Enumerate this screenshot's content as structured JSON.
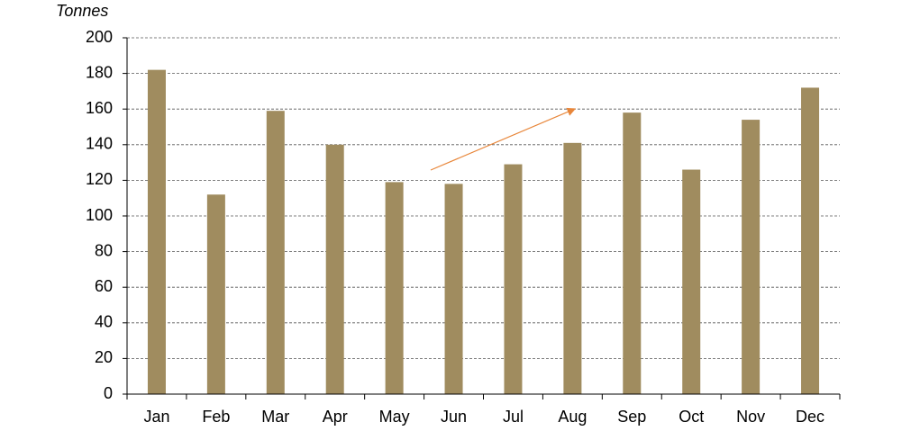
{
  "chart_data": {
    "type": "bar",
    "y_label": "Tonnes",
    "categories": [
      "Jan",
      "Feb",
      "Mar",
      "Apr",
      "May",
      "Jun",
      "Jul",
      "Aug",
      "Sep",
      "Oct",
      "Nov",
      "Dec"
    ],
    "values": [
      182,
      112,
      159,
      140,
      119,
      118,
      129,
      141,
      158,
      126,
      154,
      172
    ],
    "color": "#a08c5f",
    "ylim": [
      0,
      200
    ],
    "yticks": [
      0,
      20,
      40,
      60,
      80,
      100,
      120,
      140,
      160,
      180,
      200
    ],
    "grid": true
  }
}
